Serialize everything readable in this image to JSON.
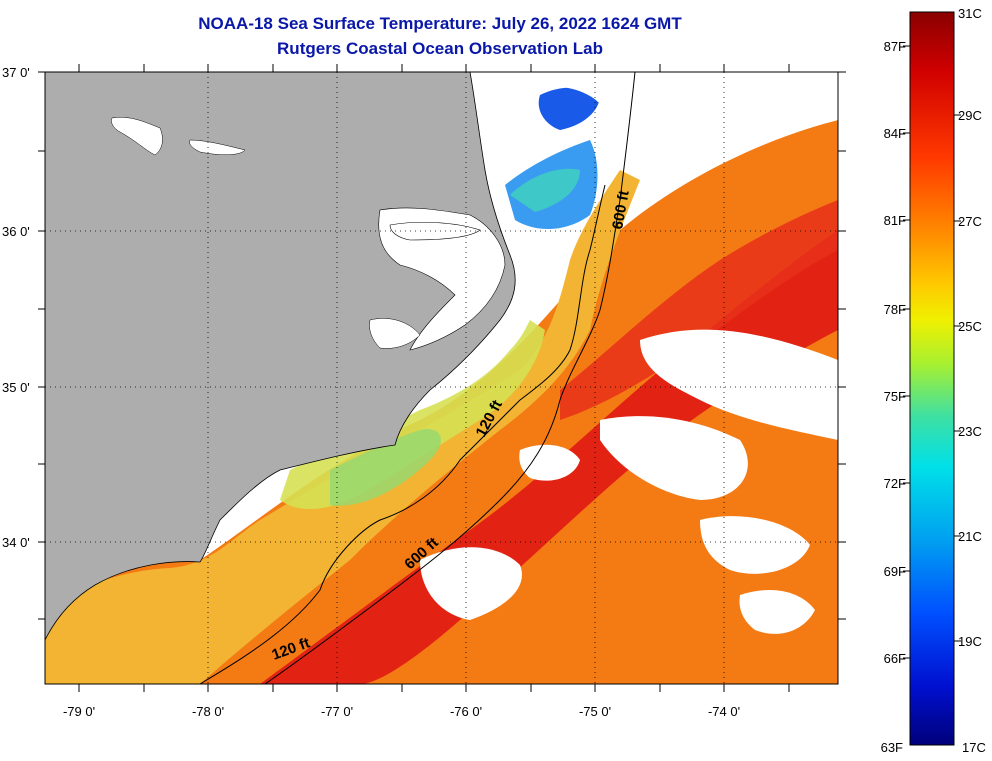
{
  "header": {
    "title": "NOAA-18 Sea Surface Temperature:  July 26, 2022 1624 GMT",
    "subtitle": "Rutgers Coastal Ocean Observation Lab"
  },
  "map": {
    "lat_labels": [
      "37 0'",
      "36 0'",
      "35 0'",
      "34 0'"
    ],
    "lon_labels": [
      "-79 0'",
      "-78 0'",
      "-77 0'",
      "-76 0'",
      "-75 0'",
      "-74 0'"
    ],
    "contours": {
      "c120_a": "120 ft",
      "c120_b": "120 ft",
      "c600_a": "600 ft",
      "c600_b": "600 ft"
    },
    "colors": {
      "land": "#adadad",
      "cloud": "#ffffff",
      "shelf_water": "#f2cf3a",
      "offshore_water": "#f47a14",
      "gulf_stream": "#e01a14",
      "cool_water": "#3a9cf0"
    }
  },
  "colorbar": {
    "fahrenheit": [
      "87F",
      "84F",
      "81F",
      "78F",
      "75F",
      "72F",
      "69F",
      "66F",
      "63F"
    ],
    "celsius": [
      "31C",
      "29C",
      "27C",
      "25C",
      "23C",
      "21C",
      "19C",
      "17C"
    ],
    "gradient": [
      "#8a0000",
      "#d80000",
      "#ff4a00",
      "#ff8c00",
      "#ffc000",
      "#f0f000",
      "#b0f020",
      "#40e090",
      "#00e0e0",
      "#00a8f0",
      "#0060ff",
      "#0018e0",
      "#00008a"
    ]
  }
}
